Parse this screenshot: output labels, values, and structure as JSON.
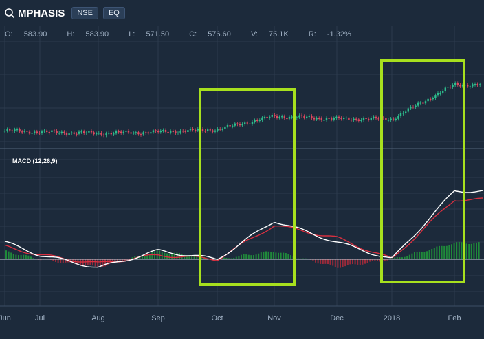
{
  "header": {
    "symbol": "MPHASIS",
    "exchange": "NSE",
    "segment": "EQ"
  },
  "ohlc": {
    "open_label": "O:",
    "open": "583.90",
    "high_label": "H:",
    "high": "583.90",
    "low_label": "L:",
    "low": "571.50",
    "close_label": "C:",
    "close": "576.60",
    "volume_label": "V:",
    "volume": "75.1K",
    "return_label": "R:",
    "return": "-1.32%"
  },
  "macd": {
    "label": "MACD (12,26,9)"
  },
  "colors": {
    "background": "#1c2a3b",
    "up": "#2dbd8d",
    "down": "#e0485f",
    "macd_line": "#ffffff",
    "signal_line": "#d93040",
    "histogram_up": "#1f8a3a",
    "histogram_down": "#9a2a3a",
    "highlight": "#a7e01e",
    "grid": "#2c3b4e"
  },
  "chart_data": [
    {
      "type": "candlestick",
      "x": [
        "Jun",
        "Jul",
        "Aug",
        "Sep",
        "Oct",
        "Nov",
        "Dec",
        "2018",
        "Feb"
      ],
      "price_trend": [
        {
          "x": "Jun",
          "y": 553
        },
        {
          "x": "Jul",
          "y": 552
        },
        {
          "x": "Aug",
          "y": 551
        },
        {
          "x": "Sep",
          "y": 552
        },
        {
          "x": "Oct",
          "y": 554
        },
        {
          "x": "Nov",
          "y": 564
        },
        {
          "x": "Dec",
          "y": 562
        },
        {
          "x": "2018",
          "y": 562
        },
        {
          "x": "Feb",
          "y": 588
        }
      ],
      "xlabel": "",
      "ylabel": "",
      "grid": true
    },
    {
      "type": "line",
      "title": "MACD (12,26,9)",
      "x": [
        "Jun",
        "Jul",
        "Aug",
        "Sep",
        "Oct",
        "Nov",
        "Dec",
        "2018",
        "Feb"
      ],
      "series": [
        {
          "values": [
            4,
            1,
            -2,
            2,
            0,
            9,
            4,
            0,
            16
          ]
        },
        {
          "values": [
            3,
            1,
            -1,
            1,
            0,
            8,
            5,
            0,
            14
          ]
        }
      ],
      "grid": true
    }
  ],
  "xaxis": {
    "ticks": [
      "Jun",
      "Jul",
      "Aug",
      "Sep",
      "Oct",
      "Nov",
      "Dec",
      "2018",
      "Feb"
    ]
  }
}
